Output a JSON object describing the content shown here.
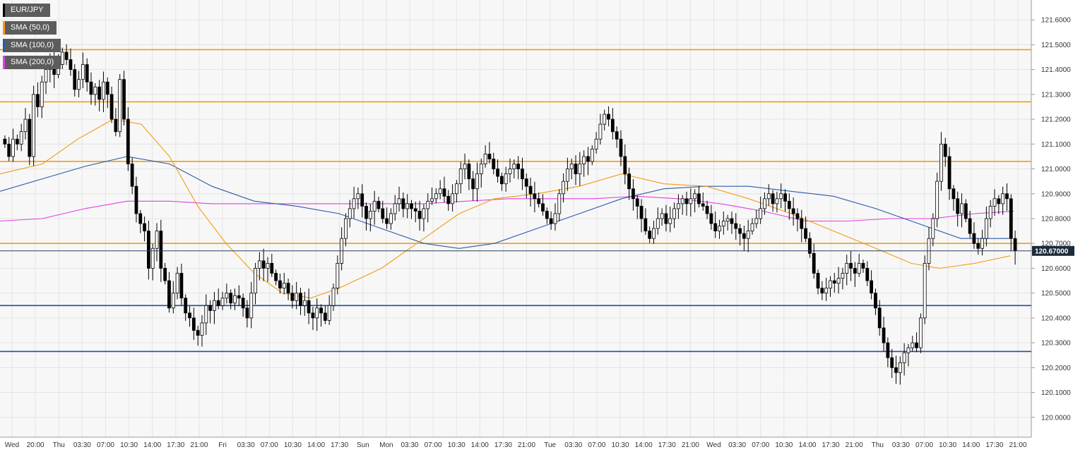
{
  "chart_data": {
    "type": "candlestick",
    "symbol": "EUR/JPY",
    "ylim": [
      119.92,
      121.68
    ],
    "y_ticks": [
      "121.6000",
      "121.5000",
      "121.4000",
      "121.3000",
      "121.2000",
      "121.1000",
      "121.0000",
      "120.9000",
      "120.8000",
      "120.7000",
      "120.6000",
      "120.5000",
      "120.4000",
      "120.3000",
      "120.2000",
      "120.1000",
      "120.0000"
    ],
    "x_tick_labels": [
      "Wed",
      "20:00",
      "Thu",
      "03:30",
      "07:00",
      "10:30",
      "14:00",
      "17:30",
      "21:00",
      "Fri",
      "03:30",
      "07:00",
      "10:30",
      "14:00",
      "17:30",
      "Sun",
      "Mon",
      "03:30",
      "07:00",
      "10:30",
      "14:00",
      "17:30",
      "21:00",
      "Tue",
      "03:30",
      "07:00",
      "10:30",
      "14:00",
      "17:30",
      "21:00",
      "Wed",
      "03:30",
      "07:00",
      "10:30",
      "14:00",
      "17:30",
      "21:00",
      "Thu",
      "03:30",
      "07:00",
      "10:30",
      "14:00",
      "17:30",
      "21:00"
    ],
    "grid": true,
    "legend": {
      "placement": "top-left",
      "items": [
        {
          "label": "EUR/JPY",
          "color": "#000000"
        },
        {
          "label": "SMA (50,0)",
          "color": "#f39c12"
        },
        {
          "label": "SMA (100,0)",
          "color": "#2a5ca8"
        },
        {
          "label": "SMA (200,0)",
          "color": "#e040e0"
        }
      ]
    },
    "current_price": {
      "value": 120.67,
      "label": "120.67000",
      "line_color": "#2c3e50",
      "box_color": "#1c2b3a"
    },
    "resistance_levels": [
      121.48,
      121.27,
      121.03,
      120.7
    ],
    "support_levels": [
      120.45,
      120.265
    ],
    "colors": {
      "resistance": "#f39c12",
      "support": "#1f4e96",
      "up_candle": "#ffffff",
      "down_candle": "#000000",
      "sma50": "#f39c12",
      "sma100": "#2a5ca8",
      "sma200": "#e040e0"
    },
    "closes": [
      121.1,
      121.05,
      121.12,
      121.1,
      121.15,
      121.2,
      121.05,
      121.3,
      121.25,
      121.35,
      121.4,
      121.45,
      121.38,
      121.42,
      121.47,
      121.44,
      121.4,
      121.32,
      121.36,
      121.42,
      121.35,
      121.3,
      121.33,
      121.28,
      121.35,
      121.3,
      121.2,
      121.15,
      121.36,
      121.2,
      121.02,
      120.93,
      120.82,
      120.78,
      120.75,
      120.6,
      120.68,
      120.75,
      120.6,
      120.55,
      120.44,
      120.5,
      120.58,
      120.48,
      120.42,
      120.4,
      120.35,
      120.33,
      120.38,
      120.45,
      120.43,
      120.47,
      120.45,
      120.48,
      120.5,
      120.46,
      120.49,
      120.48,
      120.44,
      120.4,
      120.5,
      120.6,
      120.63,
      120.6,
      120.62,
      120.58,
      120.55,
      120.52,
      120.54,
      120.5,
      120.47,
      120.5,
      120.45,
      120.47,
      120.42,
      120.4,
      120.44,
      120.42,
      120.39,
      120.45,
      120.52,
      120.62,
      120.72,
      120.8,
      120.84,
      120.88,
      120.9,
      120.85,
      120.8,
      120.83,
      120.87,
      120.84,
      120.8,
      120.78,
      120.82,
      120.86,
      120.88,
      120.84,
      120.86,
      120.84,
      120.83,
      120.8,
      120.84,
      120.87,
      120.88,
      120.9,
      120.92,
      120.89,
      120.86,
      120.9,
      120.94,
      121.0,
      121.02,
      120.96,
      120.92,
      120.98,
      121.02,
      121.06,
      121.04,
      121.0,
      120.97,
      120.94,
      120.98,
      121.0,
      121.02,
      121.0,
      120.96,
      120.93,
      120.9,
      120.88,
      120.86,
      120.83,
      120.8,
      120.78,
      120.82,
      120.9,
      120.95,
      121.0,
      121.02,
      120.98,
      121.02,
      121.05,
      121.03,
      121.08,
      121.12,
      121.18,
      121.22,
      121.2,
      121.15,
      121.12,
      121.05,
      120.98,
      120.92,
      120.88,
      120.85,
      120.8,
      120.75,
      120.72,
      120.76,
      120.8,
      120.82,
      120.78,
      120.8,
      120.84,
      120.86,
      120.88,
      120.86,
      120.88,
      120.9,
      120.86,
      120.85,
      120.82,
      120.78,
      120.75,
      120.77,
      120.79,
      120.8,
      120.78,
      120.76,
      120.74,
      120.72,
      120.75,
      120.78,
      120.8,
      120.84,
      120.88,
      120.9,
      120.86,
      120.88,
      120.9,
      120.87,
      120.84,
      120.82,
      120.8,
      120.76,
      120.72,
      120.66,
      120.58,
      120.52,
      120.5,
      120.52,
      120.55,
      120.54,
      120.56,
      120.58,
      120.62,
      120.6,
      120.58,
      120.62,
      120.6,
      120.55,
      120.5,
      120.44,
      120.36,
      120.3,
      120.24,
      120.2,
      120.18,
      120.22,
      120.26,
      120.28,
      120.3,
      120.28,
      120.4,
      120.62,
      120.72,
      120.8,
      120.95,
      121.1,
      121.05,
      120.92,
      120.88,
      120.82,
      120.86,
      120.8,
      120.74,
      120.7,
      120.68,
      120.72,
      120.8,
      120.85,
      120.88,
      120.86,
      120.9,
      120.88,
      120.72,
      120.67
    ],
    "sma50": [
      [
        0,
        120.98
      ],
      [
        60,
        121.02
      ],
      [
        110,
        121.12
      ],
      [
        160,
        121.2
      ],
      [
        200,
        121.18
      ],
      [
        240,
        121.05
      ],
      [
        280,
        120.85
      ],
      [
        320,
        120.7
      ],
      [
        360,
        120.58
      ],
      [
        400,
        120.5
      ],
      [
        440,
        120.48
      ],
      [
        480,
        120.52
      ],
      [
        540,
        120.6
      ],
      [
        600,
        120.72
      ],
      [
        650,
        120.82
      ],
      [
        700,
        120.88
      ],
      [
        760,
        120.9
      ],
      [
        820,
        120.93
      ],
      [
        880,
        120.98
      ],
      [
        940,
        120.94
      ],
      [
        1000,
        120.93
      ],
      [
        1060,
        120.88
      ],
      [
        1120,
        120.82
      ],
      [
        1180,
        120.75
      ],
      [
        1240,
        120.68
      ],
      [
        1290,
        120.62
      ],
      [
        1330,
        120.6
      ],
      [
        1380,
        120.62
      ],
      [
        1430,
        120.65
      ]
    ],
    "sma100": [
      [
        0,
        120.91
      ],
      [
        60,
        120.96
      ],
      [
        120,
        121.01
      ],
      [
        180,
        121.05
      ],
      [
        240,
        121.02
      ],
      [
        300,
        120.93
      ],
      [
        360,
        120.87
      ],
      [
        420,
        120.85
      ],
      [
        480,
        120.82
      ],
      [
        540,
        120.76
      ],
      [
        600,
        120.7
      ],
      [
        650,
        120.68
      ],
      [
        700,
        120.7
      ],
      [
        760,
        120.76
      ],
      [
        820,
        120.82
      ],
      [
        880,
        120.88
      ],
      [
        940,
        120.92
      ],
      [
        1000,
        120.93
      ],
      [
        1060,
        120.93
      ],
      [
        1120,
        120.91
      ],
      [
        1180,
        120.89
      ],
      [
        1240,
        120.84
      ],
      [
        1300,
        120.78
      ],
      [
        1360,
        120.72
      ],
      [
        1430,
        120.72
      ]
    ],
    "sma200": [
      [
        0,
        120.79
      ],
      [
        60,
        120.8
      ],
      [
        120,
        120.84
      ],
      [
        180,
        120.87
      ],
      [
        240,
        120.87
      ],
      [
        300,
        120.86
      ],
      [
        360,
        120.86
      ],
      [
        420,
        120.86
      ],
      [
        480,
        120.86
      ],
      [
        540,
        120.86
      ],
      [
        600,
        120.86
      ],
      [
        660,
        120.87
      ],
      [
        720,
        120.88
      ],
      [
        780,
        120.88
      ],
      [
        840,
        120.88
      ],
      [
        900,
        120.89
      ],
      [
        960,
        120.88
      ],
      [
        1020,
        120.86
      ],
      [
        1080,
        120.83
      ],
      [
        1140,
        120.79
      ],
      [
        1200,
        120.79
      ],
      [
        1260,
        120.8
      ],
      [
        1320,
        120.8
      ],
      [
        1380,
        120.82
      ],
      [
        1435,
        120.83
      ]
    ]
  }
}
